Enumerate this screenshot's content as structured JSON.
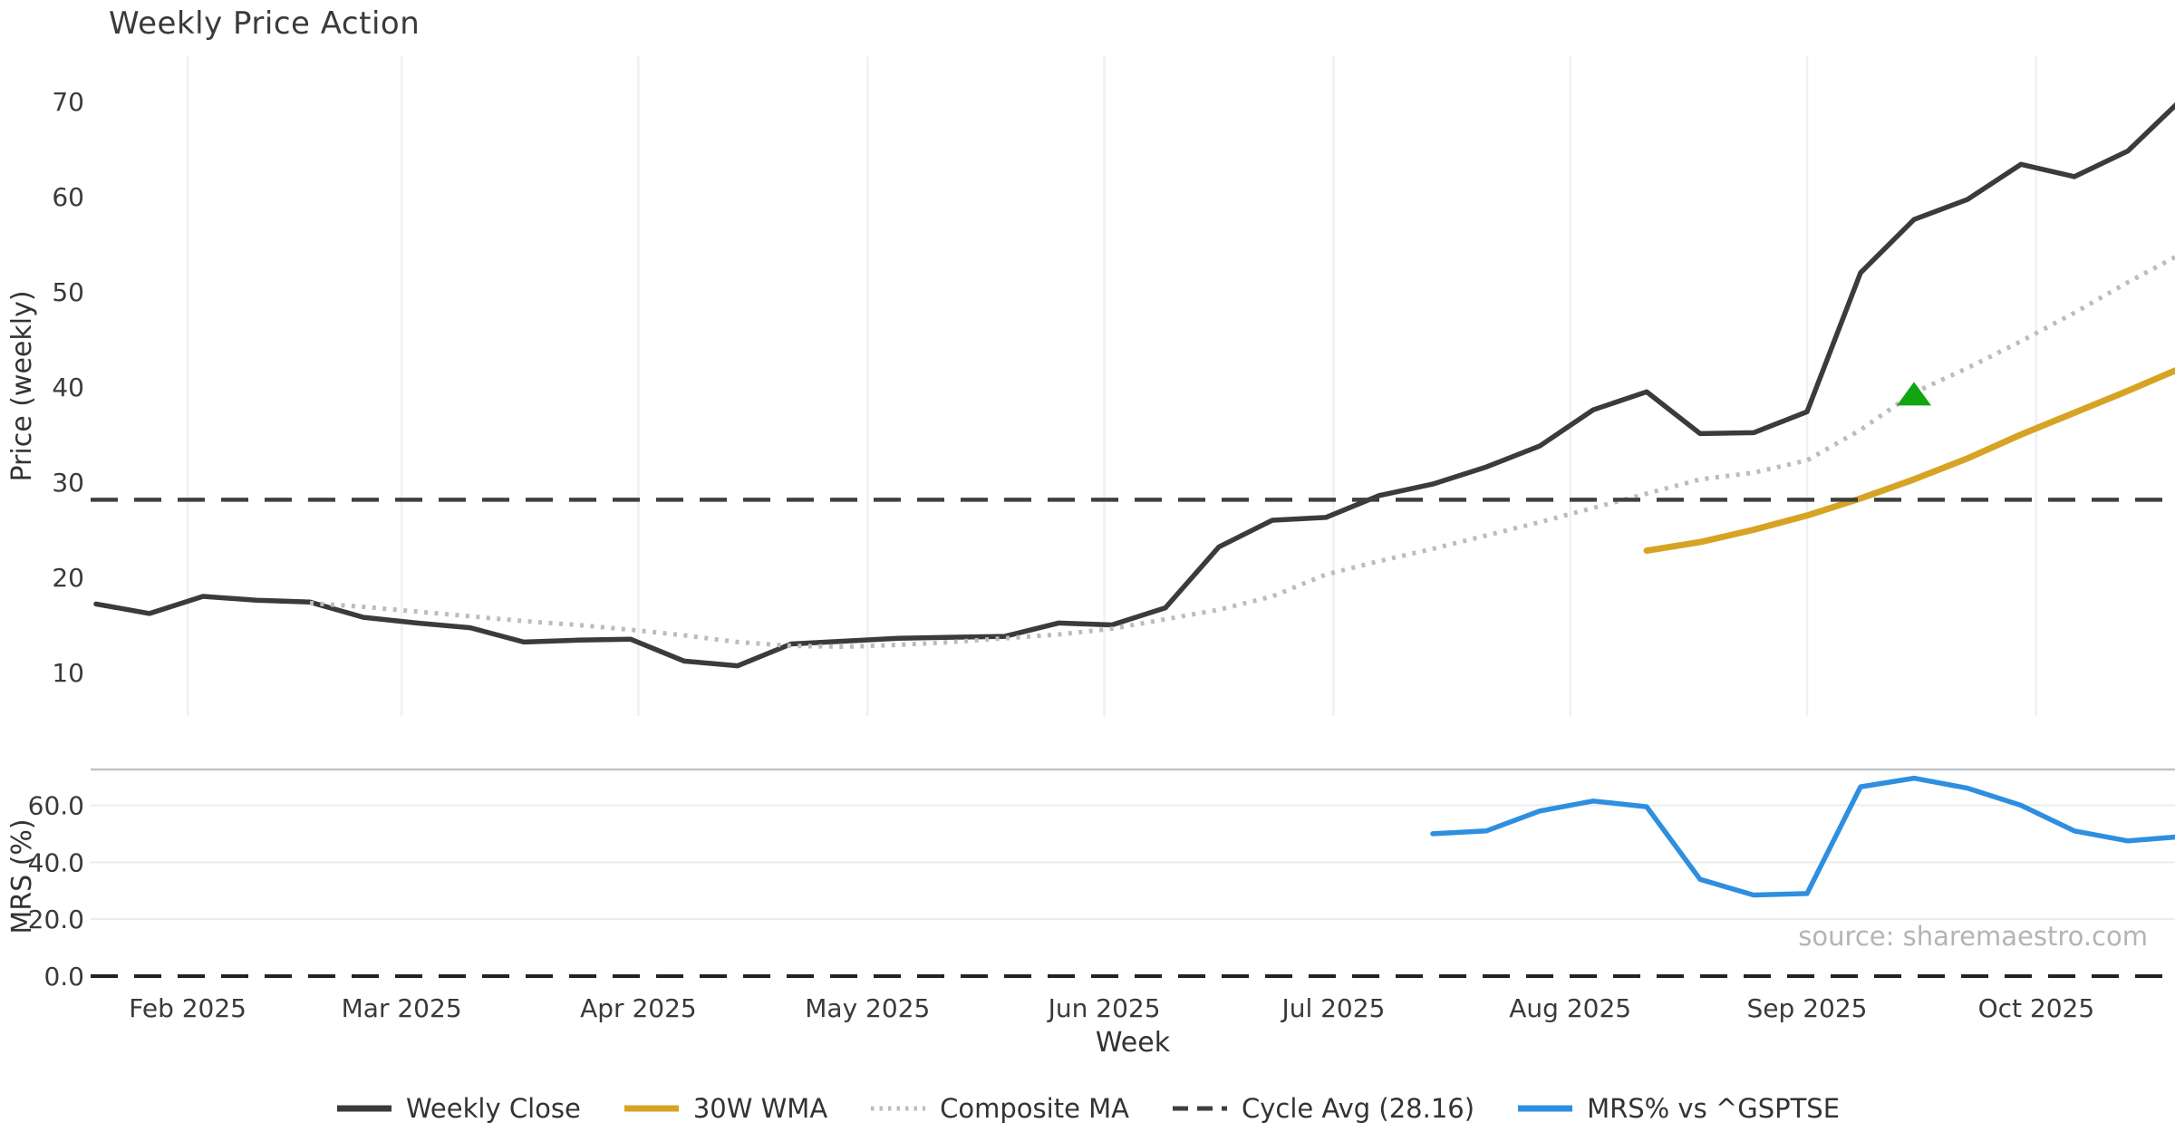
{
  "title": "Weekly Price Action",
  "source_text": "source: sharemaestro.com",
  "colors": {
    "weekly_close": "#3b3b3b",
    "wma_30w": "#d7a325",
    "composite_ma": "#bcbcbc",
    "cycle_avg": "#3f3f3f",
    "mrs": "#2e8fe0",
    "signal_triangle": "#12a512",
    "grid": "#edf1f4",
    "source_text_color": "#b4b4b4"
  },
  "chart_data": {
    "type": "line",
    "title": "Weekly Price Action",
    "x": {
      "label": "Week",
      "unit": "weekly",
      "start_week_of": "2025-01-20",
      "n_weeks": 40,
      "month_ticks": [
        {
          "label": "Feb 2025",
          "day_offset": 12
        },
        {
          "label": "Mar 2025",
          "day_offset": 40
        },
        {
          "label": "Apr 2025",
          "day_offset": 71
        },
        {
          "label": "May 2025",
          "day_offset": 101
        },
        {
          "label": "Jun 2025",
          "day_offset": 132
        },
        {
          "label": "Jul 2025",
          "day_offset": 162
        },
        {
          "label": "Aug 2025",
          "day_offset": 193
        },
        {
          "label": "Sep 2025",
          "day_offset": 224
        },
        {
          "label": "Oct 2025",
          "day_offset": 254
        }
      ]
    },
    "panels": [
      {
        "name": "price",
        "ylabel": "Price (weekly)",
        "ylim": [
          5.4,
          74.8
        ],
        "yticks": [
          10,
          20,
          30,
          40,
          50,
          60,
          70
        ],
        "grid": "vertical-months",
        "series": [
          {
            "name": "Weekly Close",
            "style": "solid",
            "color": "#3b3b3b",
            "width": 5.5,
            "start_week": 0,
            "values": [
              17.2,
              16.2,
              18.0,
              17.6,
              17.4,
              15.8,
              15.2,
              14.7,
              13.2,
              13.4,
              13.5,
              11.2,
              10.7,
              13.0,
              13.3,
              13.6,
              13.7,
              13.8,
              15.2,
              15.0,
              16.8,
              23.2,
              26.0,
              26.3,
              28.6,
              29.8,
              31.6,
              33.8,
              37.6,
              39.5,
              35.1,
              35.2,
              37.4,
              52.0,
              57.6,
              59.7,
              63.4,
              62.1,
              64.8,
              70.2
            ]
          },
          {
            "name": "30W WMA",
            "style": "solid",
            "color": "#d7a325",
            "width": 7,
            "start_week": 29,
            "values": [
              22.8,
              23.7,
              25.0,
              26.5,
              28.3,
              30.3,
              32.5,
              35.0,
              37.3,
              39.6,
              42.0
            ]
          },
          {
            "name": "Composite MA",
            "style": "dotted",
            "color": "#bcbcbc",
            "width": 5,
            "start_week": 4,
            "values": [
              17.3,
              16.9,
              16.4,
              15.9,
              15.4,
              15.0,
              14.5,
              13.9,
              13.2,
              12.8,
              12.7,
              12.9,
              13.2,
              13.6,
              14.0,
              14.6,
              15.6,
              16.6,
              18.0,
              20.3,
              21.7,
              23.0,
              24.4,
              25.8,
              27.3,
              28.8,
              30.3,
              31.0,
              32.3,
              35.5,
              39.4,
              42.0,
              44.8,
              47.8,
              51.0,
              54.0
            ]
          },
          {
            "name": "Cycle Avg (28.16)",
            "style": "dashed",
            "color": "#3f3f3f",
            "width": 4.5,
            "hline": 28.16
          }
        ],
        "markers": [
          {
            "shape": "triangle-up",
            "color": "#12a512",
            "week": 34,
            "value": 39.3,
            "meaning": "signal-marker"
          }
        ]
      },
      {
        "name": "mrs",
        "ylabel": "MRS (%)",
        "ylim": [
          -2.5,
          72.6
        ],
        "yticks": [
          0,
          20,
          40,
          60
        ],
        "ytick_labels": [
          "0.0",
          "20.0",
          "40.0",
          "60.0"
        ],
        "grid": "horizontal",
        "series": [
          {
            "name": "MRS% vs ^GSPTSE",
            "style": "solid",
            "color": "#2e8fe0",
            "width": 5.5,
            "start_week": 25,
            "values": [
              50.0,
              51.0,
              58.0,
              61.5,
              59.5,
              34.0,
              28.5,
              29.0,
              66.5,
              69.5,
              66.0,
              60.0,
              51.0,
              47.5,
              49.0
            ]
          },
          {
            "name": "zero-line",
            "style": "dashed",
            "color": "#222222",
            "width": 4,
            "hline": 0
          }
        ]
      }
    ],
    "legend_position": "bottom-center",
    "legend": [
      {
        "label": "Weekly Close",
        "color": "#3b3b3b",
        "style": "solid"
      },
      {
        "label": "30W WMA",
        "color": "#d7a325",
        "style": "solid"
      },
      {
        "label": "Composite MA",
        "color": "#bcbcbc",
        "style": "dotted"
      },
      {
        "label": "Cycle Avg (28.16)",
        "color": "#3f3f3f",
        "style": "dashed"
      },
      {
        "label": "MRS% vs ^GSPTSE",
        "color": "#2e8fe0",
        "style": "solid"
      }
    ]
  }
}
